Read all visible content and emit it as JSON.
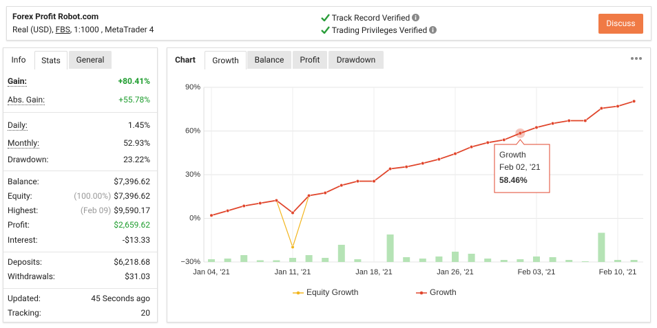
{
  "header": {
    "title": "Forex Profit Robot.com",
    "account_parts": [
      "Real (USD),",
      "FBS",
      ", 1:1000 , MetaTrader 4"
    ],
    "verified": [
      "Track Record Verified",
      "Trading Privileges Verified"
    ],
    "button": "Discuss"
  },
  "stats": {
    "tabs": [
      "Info",
      "Stats",
      "General"
    ],
    "groups": [
      [
        {
          "label": "Gain:",
          "value": "+80.41%",
          "color": "#1f9d2f",
          "bold": true,
          "dotted": true
        },
        {
          "label": "Abs. Gain:",
          "value": "+55.78%",
          "color": "#1f9d2f",
          "dotted": true
        }
      ],
      [
        {
          "label": "Daily:",
          "value": "1.45%",
          "dotted": true
        },
        {
          "label": "Monthly:",
          "value": "52.93%",
          "dotted": true
        },
        {
          "label": "Drawdown:",
          "value": "23.22%"
        }
      ],
      [
        {
          "label": "Balance:",
          "value": "$7,396.62"
        },
        {
          "label": "Equity:",
          "note": "(100.00%)",
          "value": "$7,396.62"
        },
        {
          "label": "Highest:",
          "note": "(Feb 09)",
          "value": "$9,590.17"
        },
        {
          "label": "Profit:",
          "value": "$2,659.62",
          "color": "#1f9d2f"
        },
        {
          "label": "Interest:",
          "value": "-$13.33"
        }
      ],
      [
        {
          "label": "Deposits:",
          "value": "$6,218.68"
        },
        {
          "label": "Withdrawals:",
          "value": "$31.03"
        }
      ],
      [
        {
          "label": "Updated:",
          "value": "45 Seconds ago"
        },
        {
          "label": "Tracking:",
          "value": "20"
        }
      ]
    ]
  },
  "chart_tabs": [
    "Chart",
    "Growth",
    "Balance",
    "Profit",
    "Drawdown"
  ],
  "chart_data": {
    "type": "line",
    "categories": [
      "Jan 04, '21",
      null,
      null,
      null,
      null,
      "Jan 11, '21",
      null,
      null,
      null,
      null,
      "Jan 18, '21",
      null,
      null,
      null,
      null,
      "Jan 26, '21",
      null,
      null,
      null,
      null,
      "Feb 03, '21",
      null,
      null,
      null,
      null,
      "Feb 10, '21",
      null
    ],
    "series": [
      {
        "name": "Equity Growth",
        "color": "#f2b51d",
        "values": [
          2,
          5.2,
          8.5,
          10.4,
          12.3,
          -19.8,
          15.6,
          17.5,
          22.7,
          25.5,
          25.5,
          34,
          35.4,
          37.8,
          40.6,
          44.4,
          49.1,
          52,
          53.9,
          58.46,
          62.4,
          65.2,
          67.1,
          67.1,
          75.6,
          77,
          80.41
        ]
      },
      {
        "name": "Growth",
        "color": "#e0452c",
        "values": [
          2,
          5.2,
          8.5,
          10.4,
          12.3,
          3.8,
          15.6,
          17.5,
          22.7,
          25.5,
          25.5,
          34,
          35.4,
          37.8,
          40.6,
          44.4,
          49.1,
          52,
          53.9,
          58.46,
          62.4,
          65.2,
          67.1,
          67.1,
          75.6,
          77,
          80.41
        ]
      }
    ],
    "bars": {
      "color": "#b5e3b5",
      "values": [
        0.8,
        1,
        2,
        0.5,
        0.5,
        1.2,
        2,
        1.2,
        5,
        0.8,
        0,
        8,
        1.4,
        1,
        1.6,
        3,
        2.4,
        1,
        0.6,
        0.8,
        1.6,
        1.4,
        0.6,
        0.2,
        8.5,
        0.6,
        0.6
      ]
    },
    "ylim": [
      -30,
      90
    ],
    "yticks": [
      {
        "value": -30,
        "label": "−30%"
      },
      {
        "value": 0,
        "label": "0%"
      },
      {
        "value": 30,
        "label": "30%"
      },
      {
        "value": 60,
        "label": "60%"
      },
      {
        "value": 90,
        "label": "90%"
      }
    ],
    "grid": true,
    "legend": "bottom",
    "tooltip": {
      "date": "Feb 02, '21",
      "value": "58.46%"
    }
  }
}
